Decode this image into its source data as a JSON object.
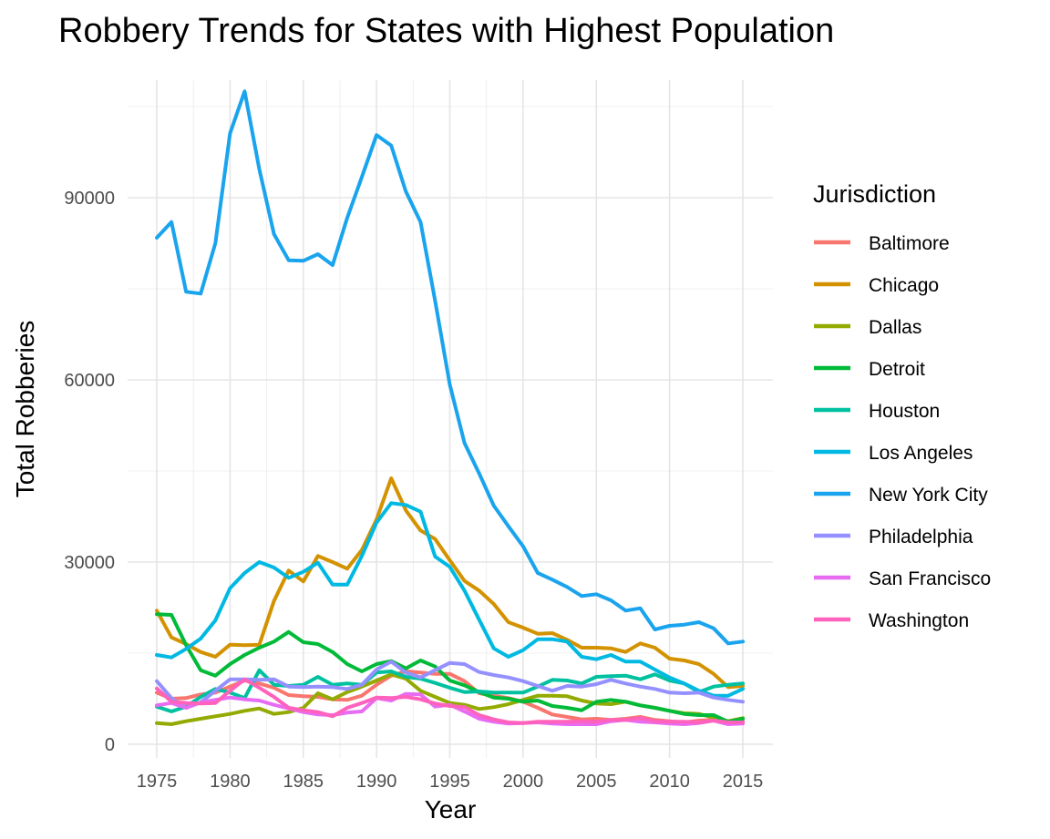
{
  "chart_data": {
    "type": "line",
    "title": "Robbery Trends for States with Highest Population",
    "xlabel": "Year",
    "ylabel": "Total Robberies",
    "xlim": [
      1975,
      2015
    ],
    "ylim": [
      0,
      108000
    ],
    "x_ticks": [
      "1975",
      "1980",
      "1985",
      "1990",
      "1995",
      "2000",
      "2005",
      "2010",
      "2015"
    ],
    "y_ticks": [
      "0",
      "30000",
      "60000",
      "90000"
    ],
    "legend_title": "Jurisdiction",
    "legend_position": "right",
    "grid": true,
    "x": [
      1975,
      1976,
      1977,
      1978,
      1979,
      1980,
      1981,
      1982,
      1983,
      1984,
      1985,
      1986,
      1987,
      1988,
      1989,
      1990,
      1991,
      1992,
      1993,
      1994,
      1995,
      1996,
      1997,
      1998,
      1999,
      2000,
      2001,
      2002,
      2003,
      2004,
      2005,
      2006,
      2007,
      2008,
      2009,
      2010,
      2011,
      2012,
      2013,
      2014,
      2015
    ],
    "series": [
      {
        "name": "Baltimore",
        "color": "#F8766D",
        "values": [
          8500,
          7500,
          7600,
          8200,
          8500,
          9500,
          10500,
          10000,
          9300,
          8100,
          7900,
          7800,
          7400,
          7300,
          8000,
          9800,
          11300,
          12000,
          11800,
          11600,
          11600,
          10400,
          8400,
          8000,
          7600,
          7000,
          6000,
          4900,
          4500,
          4100,
          4200,
          4000,
          4200,
          4500,
          4000,
          3800,
          3600,
          3900,
          4000,
          3600,
          3800
        ]
      },
      {
        "name": "Chicago",
        "color": "#D39200",
        "values": [
          22000,
          17600,
          16500,
          15200,
          14400,
          16400,
          16300,
          16400,
          23600,
          28600,
          26800,
          31000,
          30000,
          28900,
          32000,
          37000,
          43800,
          38500,
          35200,
          33800,
          30300,
          26900,
          25300,
          23100,
          20100,
          19200,
          18200,
          18300,
          17200,
          15900,
          15900,
          15800,
          15200,
          16600,
          15900,
          14100,
          13800,
          13200,
          11600,
          9400,
          9600
        ]
      },
      {
        "name": "Dallas",
        "color": "#93AA00",
        "values": [
          3500,
          3300,
          3800,
          4200,
          4600,
          5000,
          5500,
          5900,
          5000,
          5300,
          6000,
          8400,
          7400,
          8600,
          9500,
          10500,
          11500,
          10800,
          8800,
          7800,
          6800,
          6500,
          5800,
          6100,
          6600,
          7300,
          8000,
          8000,
          7900,
          7200,
          6700,
          6600,
          7000,
          6400,
          6000,
          5500,
          5100,
          5000,
          4400,
          3800,
          4300
        ]
      },
      {
        "name": "Detroit",
        "color": "#00BA38",
        "values": [
          21400,
          21300,
          16300,
          12200,
          11300,
          13200,
          14700,
          15900,
          16900,
          18500,
          16800,
          16500,
          15200,
          13200,
          12000,
          13200,
          13700,
          12500,
          13800,
          12800,
          10500,
          9700,
          8600,
          7700,
          7500,
          7000,
          7200,
          6300,
          6000,
          5600,
          7000,
          7300,
          7000,
          6400,
          6000,
          5500,
          5000,
          4800,
          4800,
          3700,
          4200
        ]
      },
      {
        "name": "Houston",
        "color": "#00C19F",
        "values": [
          6200,
          5400,
          6200,
          7800,
          9100,
          8500,
          7600,
          12200,
          9800,
          9600,
          9800,
          11100,
          9800,
          10000,
          9800,
          11800,
          12000,
          11100,
          10800,
          10100,
          9300,
          8600,
          8700,
          8500,
          8500,
          8500,
          9500,
          10600,
          10500,
          10000,
          11100,
          11200,
          11300,
          10700,
          11500,
          10500,
          10000,
          8600,
          9500,
          9800,
          10000
        ]
      },
      {
        "name": "Los Angeles",
        "color": "#00B9E3",
        "values": [
          14700,
          14300,
          15700,
          17400,
          20400,
          25700,
          28200,
          30000,
          29100,
          27400,
          28400,
          29900,
          26300,
          26300,
          31000,
          36500,
          39700,
          39400,
          38300,
          30900,
          29200,
          25300,
          20500,
          15800,
          14400,
          15500,
          17300,
          17300,
          16900,
          14400,
          14000,
          14700,
          13600,
          13600,
          12300,
          11000,
          10000,
          8800,
          8000,
          8000,
          9100
        ]
      },
      {
        "name": "New York City",
        "color": "#1AA4EE",
        "values": [
          83400,
          86000,
          74500,
          74200,
          82500,
          100600,
          107500,
          94700,
          84000,
          79700,
          79600,
          80700,
          78900,
          86700,
          93400,
          100300,
          98600,
          91000,
          86000,
          73000,
          59200,
          49600,
          44600,
          39300,
          35900,
          32600,
          28200,
          27100,
          25900,
          24400,
          24700,
          23700,
          22000,
          22400,
          18900,
          19500,
          19700,
          20100,
          19100,
          16600,
          16900
        ]
      },
      {
        "name": "Philadelphia",
        "color": "#9590FF",
        "values": [
          10400,
          7600,
          6000,
          6900,
          8800,
          10700,
          10700,
          10600,
          10700,
          9500,
          9400,
          9500,
          9400,
          9100,
          9800,
          12300,
          13600,
          11800,
          11000,
          12200,
          13400,
          13200,
          11900,
          11400,
          11000,
          10400,
          9600,
          8800,
          9600,
          9500,
          9900,
          10600,
          10000,
          9500,
          9100,
          8500,
          8400,
          8500,
          7700,
          7300,
          7000
        ]
      },
      {
        "name": "San Francisco",
        "color": "#E76BF3",
        "values": [
          6400,
          6800,
          6000,
          6900,
          7300,
          7700,
          7400,
          7200,
          6500,
          5900,
          5300,
          4900,
          4800,
          5200,
          5400,
          7600,
          7200,
          8300,
          8200,
          6200,
          6500,
          5400,
          4200,
          3700,
          3400,
          3500,
          3600,
          3400,
          3300,
          3300,
          3300,
          3800,
          4000,
          3700,
          3600,
          3400,
          3300,
          3500,
          3900,
          3300,
          3400
        ]
      },
      {
        "name": "Washington",
        "color": "#FF62BC",
        "values": [
          9200,
          7000,
          6800,
          6700,
          6800,
          8800,
          10700,
          9300,
          7800,
          6000,
          5600,
          5300,
          4600,
          6000,
          6800,
          7700,
          7600,
          7800,
          7400,
          6700,
          6300,
          6100,
          4800,
          4100,
          3600,
          3500,
          3700,
          3700,
          3700,
          3800,
          3700,
          4000,
          4000,
          4300,
          3800,
          3700,
          3700,
          3600,
          3900,
          3600,
          3600
        ]
      }
    ]
  }
}
